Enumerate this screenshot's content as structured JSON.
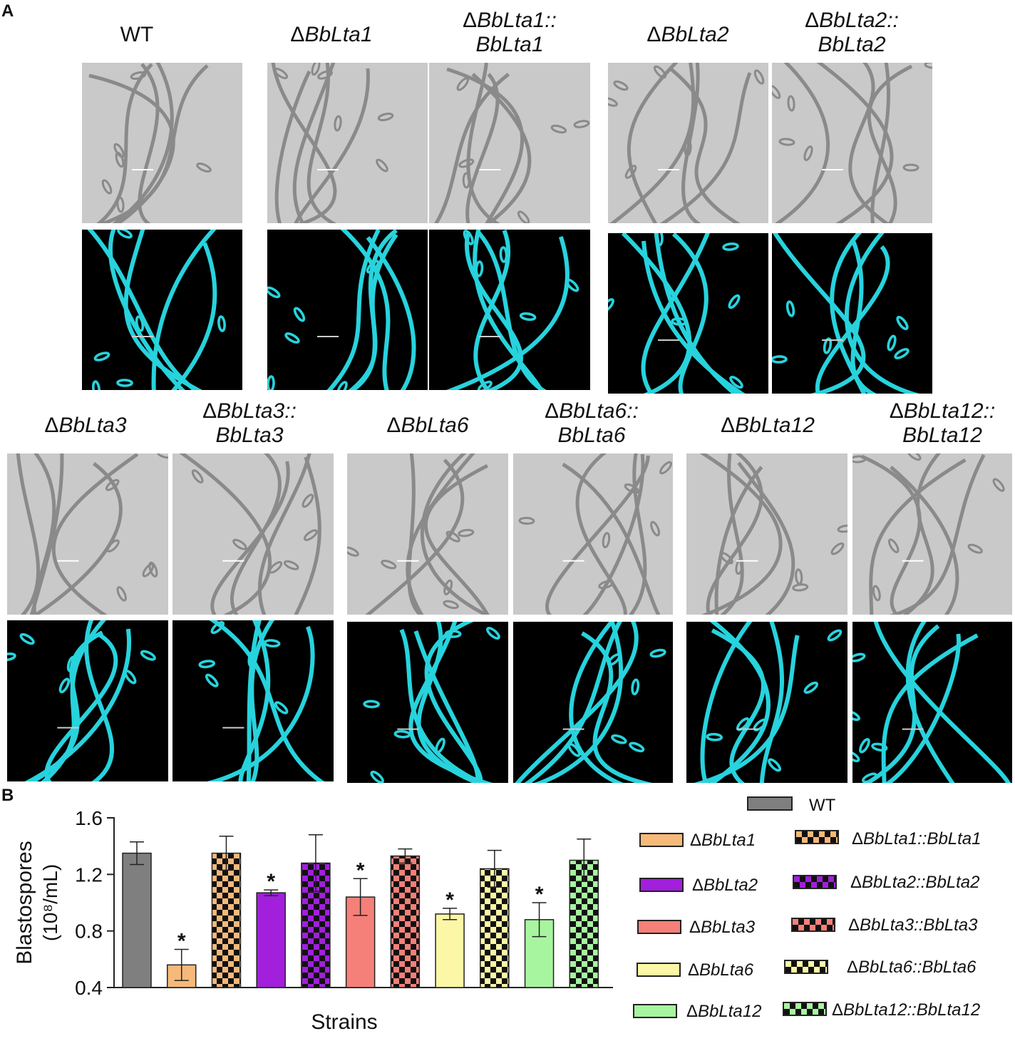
{
  "panel_a": {
    "label": "A",
    "strains": [
      {
        "pre": "",
        "it1": "",
        "mid": "WT",
        "it2": ""
      },
      {
        "pre": "Δ",
        "it1": "BbLta1",
        "mid": "",
        "it2": ""
      },
      {
        "pre": "Δ",
        "it1": "BbLta1::",
        "mid": "",
        "it2": "BbLta1"
      },
      {
        "pre": "Δ",
        "it1": "BbLta2",
        "mid": "",
        "it2": ""
      },
      {
        "pre": "Δ",
        "it1": "BbLta2::",
        "mid": "",
        "it2": "BbLta2"
      },
      {
        "pre": "Δ",
        "it1": "BbLta3",
        "mid": "",
        "it2": ""
      },
      {
        "pre": "Δ",
        "it1": "BbLta3::",
        "mid": "",
        "it2": "BbLta3"
      },
      {
        "pre": "Δ",
        "it1": "BbLta6",
        "mid": "",
        "it2": ""
      },
      {
        "pre": "Δ",
        "it1": "BbLta6::",
        "mid": "",
        "it2": "BbLta6"
      },
      {
        "pre": "Δ",
        "it1": "BbLta12",
        "mid": "",
        "it2": ""
      },
      {
        "pre": "Δ",
        "it1": "BbLta12::",
        "mid": "",
        "it2": "BbLta12"
      }
    ],
    "brightfield_color": "#c9c9c9",
    "fluorescence_color": "#27d3dd"
  },
  "panel_b": {
    "label": "B"
  },
  "chart_data": {
    "type": "bar",
    "categories": [
      "WT",
      "ΔBbLta1",
      "ΔBbLta1::BbLta1",
      "ΔBbLta2",
      "ΔBbLta2::BbLta2",
      "ΔBbLta3",
      "ΔBbLta3::BbLta3",
      "ΔBbLta6",
      "ΔBbLta6::BbLta6",
      "ΔBbLta12",
      "ΔBbLta12::BbLta12"
    ],
    "values": [
      1.35,
      0.56,
      1.35,
      1.07,
      1.28,
      1.04,
      1.33,
      0.92,
      1.24,
      0.88,
      1.3
    ],
    "errors": [
      0.08,
      0.11,
      0.12,
      0.02,
      0.2,
      0.13,
      0.05,
      0.04,
      0.13,
      0.12,
      0.15
    ],
    "significant": [
      false,
      true,
      false,
      true,
      false,
      true,
      false,
      true,
      false,
      true,
      false
    ],
    "significance_mark": "*",
    "colors": [
      "#7f7f7f",
      "#f5b97a",
      "#f5b97a",
      "#a21fdc",
      "#a21fdc",
      "#f48079",
      "#f48079",
      "#fbf7a6",
      "#fbf7a6",
      "#a8f5a0",
      "#a8f5a0"
    ],
    "checkered": [
      false,
      false,
      true,
      false,
      true,
      false,
      true,
      false,
      true,
      false,
      true
    ],
    "xlabel": "Strains",
    "ylabel_line1": "Blastospores",
    "ylabel_line2": "(10⁸/mL)",
    "ylim": [
      0.4,
      1.6
    ],
    "yticks": [
      0.4,
      0.8,
      1.2,
      1.6
    ],
    "ytick_labels": [
      "0.4",
      "0.8",
      "1.2",
      "1.6"
    ],
    "legend": [
      {
        "pre": "",
        "label": "WT"
      },
      {
        "pre": "Δ",
        "label": "BbLta1"
      },
      {
        "pre": "Δ",
        "label": "BbLta1::BbLta1"
      },
      {
        "pre": "Δ",
        "label": "BbLta2"
      },
      {
        "pre": "Δ",
        "label": "BbLta2::BbLta2"
      },
      {
        "pre": "Δ",
        "label": "BbLta3"
      },
      {
        "pre": "Δ",
        "label": "BbLta3::BbLta3"
      },
      {
        "pre": "Δ",
        "label": "BbLta6"
      },
      {
        "pre": "Δ",
        "label": "BbLta6::BbLta6"
      },
      {
        "pre": "Δ",
        "label": "BbLta12"
      },
      {
        "pre": "Δ",
        "label": "BbLta12::BbLta12"
      }
    ],
    "legend_position": "right",
    "grid": false
  }
}
